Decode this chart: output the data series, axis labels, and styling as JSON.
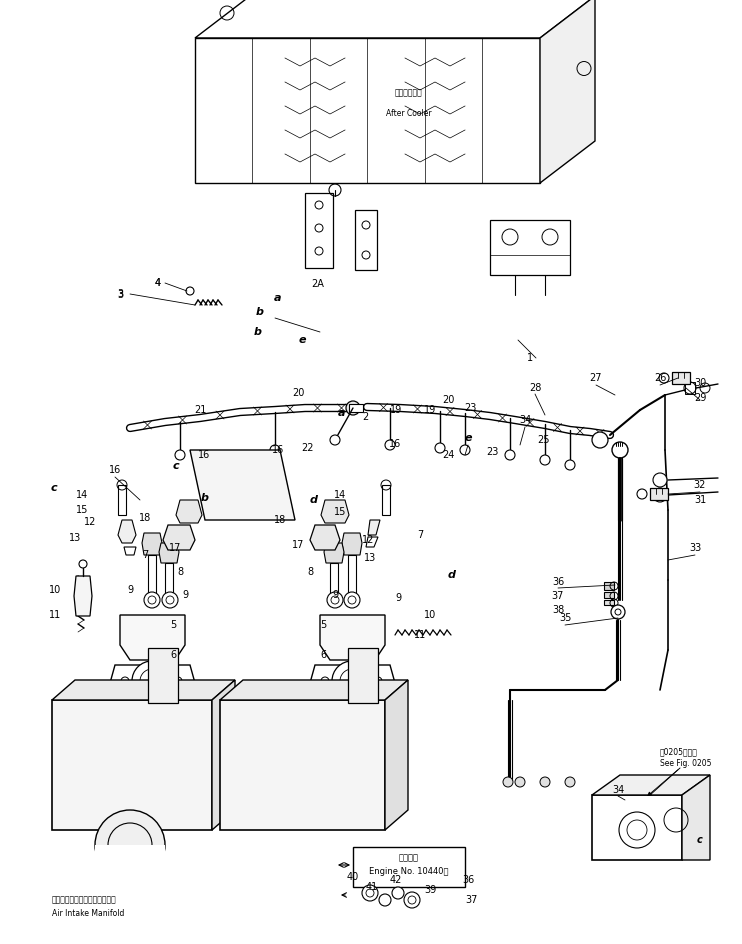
{
  "bg_color": "#ffffff",
  "line_color": "#000000",
  "fig_width": 7.42,
  "fig_height": 9.44,
  "dpi": 100,
  "labels": {
    "after_cooler_jp": "アフタクーラ",
    "after_cooler_en": "After Cooler",
    "air_intake_jp": "エアーインテークマニホールド",
    "air_intake_en": "Air Intake Manifold",
    "engine_no_jp": "適用号機",
    "engine_no_en": "Engine No. 10440～",
    "see_fig_jp": "図0205図参照",
    "see_fig_en": "See Fig. 0205"
  }
}
